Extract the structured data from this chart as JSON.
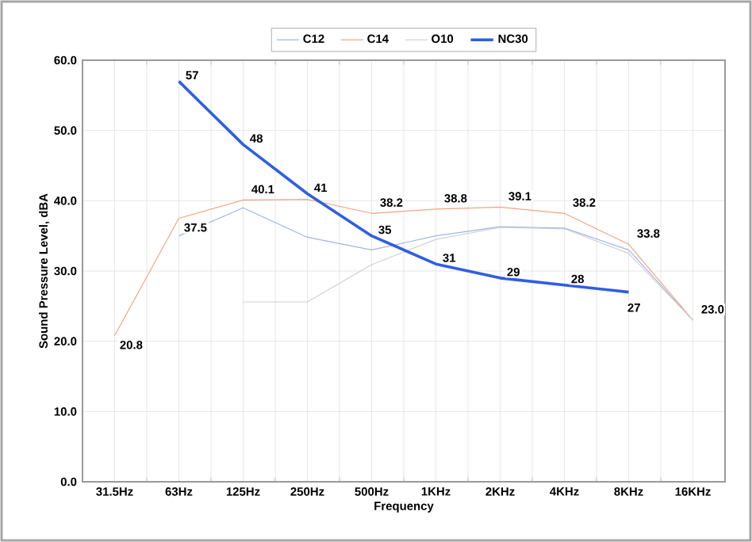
{
  "chart_data": {
    "type": "line",
    "xlabel": "Frequency",
    "ylabel": "Sound Pressure Level, dBA",
    "categories": [
      "31.5Hz",
      "63Hz",
      "125Hz",
      "250Hz",
      "500Hz",
      "1KHz",
      "2KHz",
      "4KHz",
      "8KHz",
      "16KHz"
    ],
    "ylim": [
      0,
      60
    ],
    "yticks": [
      {
        "value": 0,
        "label": "0.0"
      },
      {
        "value": 10,
        "label": "10.0"
      },
      {
        "value": 20,
        "label": "20.0"
      },
      {
        "value": 30,
        "label": "30.0"
      },
      {
        "value": 40,
        "label": "40.0"
      },
      {
        "value": 50,
        "label": "50.0"
      },
      {
        "value": 60,
        "label": "60.0"
      }
    ],
    "grid": true,
    "legend": "top",
    "marker": "none",
    "line_style": "solid",
    "series": [
      {
        "name": "C12",
        "color": "#9fb4e8",
        "values": [
          null,
          35,
          39,
          34.8,
          33,
          35,
          36.3,
          36.1,
          33,
          23
        ]
      },
      {
        "name": "C14",
        "color": "#f0a584",
        "values": [
          20.8,
          37.5,
          40.1,
          40.2,
          38.2,
          38.8,
          39.1,
          38.2,
          33.8,
          23.0
        ],
        "value_labels": [
          "20.8",
          "37.5",
          "40.1",
          null,
          "38.2",
          "38.8",
          "39.1",
          "38.2",
          "33.8",
          "23.0"
        ]
      },
      {
        "name": "O10",
        "color": "#d0d0d0",
        "values": [
          null,
          null,
          25.6,
          25.6,
          30.9,
          34.5,
          36.2,
          36,
          32.5,
          23
        ]
      },
      {
        "name": "NC30",
        "color": "#2f5fe0",
        "values": [
          null,
          57,
          48,
          41,
          35,
          31,
          29,
          28,
          27,
          null
        ],
        "value_labels": [
          null,
          "57",
          "48",
          "41",
          "35",
          "31",
          "29",
          "28",
          "27",
          null
        ]
      }
    ]
  }
}
